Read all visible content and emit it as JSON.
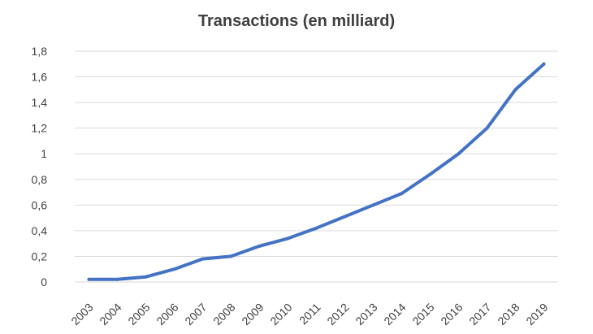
{
  "chart_data": {
    "type": "line",
    "title": "Transactions (en milliard)",
    "xlabel": "",
    "ylabel": "",
    "categories": [
      "2003",
      "2004",
      "2005",
      "2006",
      "2007",
      "2008",
      "2009",
      "2010",
      "2011",
      "2012",
      "2013",
      "2014",
      "2015",
      "2016",
      "2017",
      "2018",
      "2019"
    ],
    "series": [
      {
        "values": [
          0.02,
          0.02,
          0.04,
          0.1,
          0.18,
          0.2,
          0.28,
          0.34,
          0.42,
          0.51,
          0.6,
          0.69,
          0.84,
          1.0,
          1.2,
          1.5,
          1.7
        ],
        "color": "#4472c4"
      }
    ],
    "ylim": [
      0,
      1.8
    ],
    "yticks": [
      "0",
      "0,2",
      "0,4",
      "0,6",
      "0,8",
      "1",
      "1,2",
      "1,4",
      "1,6",
      "1,8"
    ],
    "grid": true,
    "legend": "none"
  }
}
